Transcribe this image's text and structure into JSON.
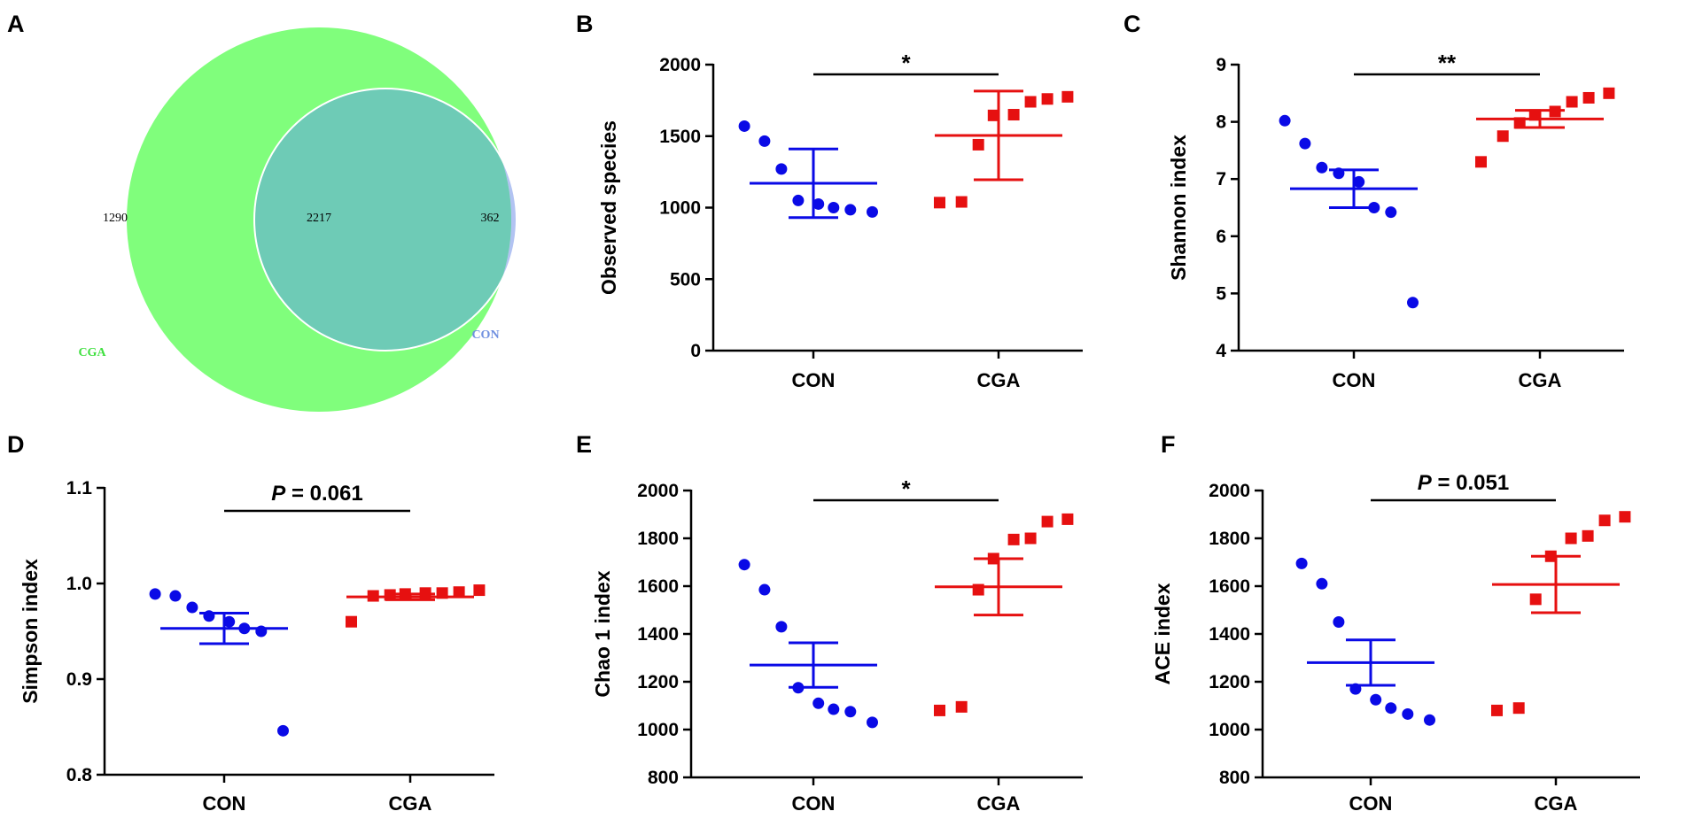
{
  "colors": {
    "con": "#0a0ae6",
    "cga": "#e61010",
    "venn_cga": "#80fe7c",
    "venn_con": "#b2c3f2",
    "venn_overlap": "#6ecbb6",
    "venn_cga_label": "#40e040",
    "venn_con_label": "#7090e0"
  },
  "venn": {
    "panel": "A",
    "sets": [
      {
        "name": "CGA",
        "unique": "1290"
      },
      {
        "name": "CON",
        "unique": "362"
      }
    ],
    "overlap": "2217"
  },
  "chart_data": [
    {
      "panel": "B",
      "type": "scatter",
      "ylabel": "Observed species",
      "categories": [
        "CON",
        "CGA"
      ],
      "ylim": [
        0,
        2000
      ],
      "yticks": [
        0,
        500,
        1000,
        1500,
        2000
      ],
      "series": [
        {
          "name": "CON",
          "marker": "circle",
          "color": "con",
          "values": [
            1570,
            1465,
            1270,
            1050,
            1025,
            1000,
            985,
            970
          ],
          "mean": 1170,
          "sem": 240
        },
        {
          "name": "CGA",
          "marker": "square",
          "color": "cga",
          "values": [
            1775,
            1760,
            1740,
            1650,
            1645,
            1440,
            1040,
            1035
          ],
          "mean": 1505,
          "sem": 310
        }
      ],
      "significance": {
        "label": "*",
        "italic_p": false
      }
    },
    {
      "panel": "C",
      "type": "scatter",
      "ylabel": "Shannon index",
      "categories": [
        "CON",
        "CGA"
      ],
      "ylim": [
        4,
        9
      ],
      "yticks": [
        4,
        5,
        6,
        7,
        8,
        9
      ],
      "series": [
        {
          "name": "CON",
          "marker": "circle",
          "color": "con",
          "values": [
            8.02,
            7.62,
            7.2,
            7.1,
            6.95,
            6.5,
            6.42,
            4.84
          ],
          "mean": 6.83,
          "sem": 0.33
        },
        {
          "name": "CGA",
          "marker": "square",
          "color": "cga",
          "values": [
            8.5,
            8.42,
            8.35,
            8.18,
            8.12,
            7.98,
            7.75,
            7.3
          ],
          "mean": 8.05,
          "sem": 0.15
        }
      ],
      "significance": {
        "label": "**",
        "italic_p": false
      }
    },
    {
      "panel": "D",
      "type": "scatter",
      "ylabel": "Simpson index",
      "categories": [
        "CON",
        "CGA"
      ],
      "ylim": [
        0.8,
        1.1
      ],
      "yticks": [
        "0.8",
        "0.9",
        "1.0",
        "1.1"
      ],
      "series": [
        {
          "name": "CON",
          "marker": "circle",
          "color": "con",
          "values": [
            0.989,
            0.987,
            0.975,
            0.966,
            0.96,
            0.953,
            0.95,
            0.846
          ],
          "mean": 0.953,
          "sem": 0.016
        },
        {
          "name": "CGA",
          "marker": "square",
          "color": "cga",
          "values": [
            0.993,
            0.991,
            0.99,
            0.99,
            0.989,
            0.988,
            0.987,
            0.96
          ],
          "mean": 0.986,
          "sem": 0.003
        },
        {
          "name": "_",
          "values": []
        }
      ],
      "significance": {
        "label": "= 0.061",
        "italic_p": true,
        "p_symbol": "P"
      }
    },
    {
      "panel": "E",
      "type": "scatter",
      "ylabel": "Chao 1 index",
      "categories": [
        "CON",
        "CGA"
      ],
      "ylim": [
        800,
        2000
      ],
      "yticks": [
        800,
        1000,
        1200,
        1400,
        1600,
        1800,
        2000
      ],
      "series": [
        {
          "name": "CON",
          "marker": "circle",
          "color": "con",
          "values": [
            1690,
            1585,
            1430,
            1175,
            1110,
            1085,
            1075,
            1030
          ],
          "mean": 1270,
          "sem": 93
        },
        {
          "name": "CGA",
          "marker": "square",
          "color": "cga",
          "values": [
            1880,
            1870,
            1800,
            1795,
            1715,
            1585,
            1095,
            1080
          ],
          "mean": 1597,
          "sem": 118
        }
      ],
      "significance": {
        "label": "*",
        "italic_p": false
      }
    },
    {
      "panel": "F",
      "type": "scatter",
      "ylabel": "ACE index",
      "categories": [
        "CON",
        "CGA"
      ],
      "ylim": [
        800,
        2000
      ],
      "yticks": [
        800,
        1000,
        1200,
        1400,
        1600,
        1800,
        2000
      ],
      "series": [
        {
          "name": "CON",
          "marker": "circle",
          "color": "con",
          "values": [
            1695,
            1610,
            1450,
            1170,
            1125,
            1090,
            1065,
            1040
          ],
          "mean": 1280,
          "sem": 95
        },
        {
          "name": "CGA",
          "marker": "square",
          "color": "cga",
          "values": [
            1890,
            1875,
            1810,
            1800,
            1725,
            1545,
            1090,
            1080
          ],
          "mean": 1607,
          "sem": 118
        }
      ],
      "significance": {
        "label": "= 0.051",
        "italic_p": true,
        "p_symbol": "P"
      }
    }
  ]
}
